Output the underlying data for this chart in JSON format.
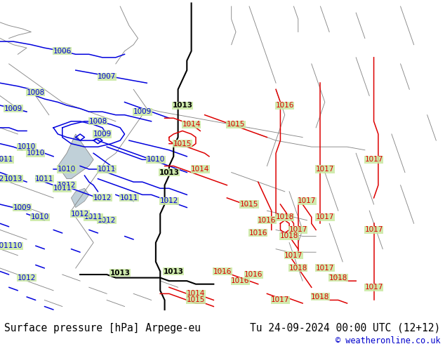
{
  "title_left": "Surface pressure [hPa] Arpege-eu",
  "title_right": "Tu 24-09-2024 00:00 UTC (12+12)",
  "copyright": "© weatheronline.co.uk",
  "bg_color": "#c8e8a0",
  "water_color": "#c0d0d8",
  "coast_color": "#888888",
  "border_color": "#888888",
  "blue": "#0000dd",
  "black": "#000000",
  "red": "#dd0000",
  "fig_width": 6.34,
  "fig_height": 4.9,
  "dpi": 100,
  "title_fontsize": 10.5,
  "copyright_fontsize": 8.5,
  "iso_lw": 1.1,
  "label_fs": 7.5
}
